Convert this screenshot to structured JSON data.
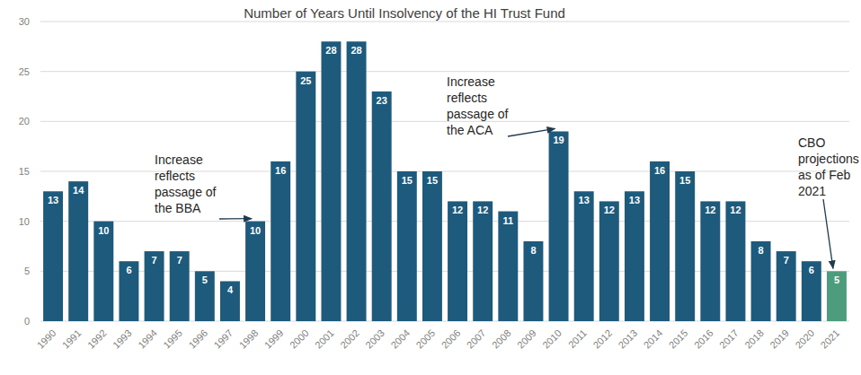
{
  "chart_data": {
    "type": "bar",
    "title": "Number of Years Until Insolvency of the HI Trust Fund",
    "categories": [
      "1990",
      "1991",
      "1992",
      "1993",
      "1994",
      "1995",
      "1996",
      "1997",
      "1998",
      "1999",
      "2000",
      "2001",
      "2002",
      "2003",
      "2004",
      "2005",
      "2006",
      "2007",
      "2008",
      "2009",
      "2010",
      "2011",
      "2012",
      "2013",
      "2014",
      "2015",
      "2016",
      "2017",
      "2018",
      "2019",
      "2020",
      "2021"
    ],
    "values": [
      13,
      14,
      10,
      6,
      7,
      7,
      5,
      4,
      10,
      16,
      25,
      28,
      28,
      23,
      15,
      15,
      12,
      12,
      11,
      8,
      19,
      13,
      12,
      13,
      16,
      15,
      12,
      12,
      8,
      7,
      6,
      5
    ],
    "colors": [
      "#1d5a7c",
      "#1d5a7c",
      "#1d5a7c",
      "#1d5a7c",
      "#1d5a7c",
      "#1d5a7c",
      "#1d5a7c",
      "#1d5a7c",
      "#1d5a7c",
      "#1d5a7c",
      "#1d5a7c",
      "#1d5a7c",
      "#1d5a7c",
      "#1d5a7c",
      "#1d5a7c",
      "#1d5a7c",
      "#1d5a7c",
      "#1d5a7c",
      "#1d5a7c",
      "#1d5a7c",
      "#1d5a7c",
      "#1d5a7c",
      "#1d5a7c",
      "#1d5a7c",
      "#1d5a7c",
      "#1d5a7c",
      "#1d5a7c",
      "#1d5a7c",
      "#1d5a7c",
      "#1d5a7c",
      "#1d5a7c",
      "#4e9c7e"
    ],
    "ylim": [
      0,
      30
    ],
    "yticks": [
      0,
      5,
      10,
      15,
      20,
      25,
      30
    ],
    "grid": true,
    "data_labels": true,
    "annotations": [
      {
        "text": "Increase reflects passage of the BBA",
        "category": "1998"
      },
      {
        "text": "Increase reflects passage of the ACA",
        "category": "2010"
      },
      {
        "text": "CBO projections as of Feb 2021",
        "category": "2021"
      }
    ]
  }
}
